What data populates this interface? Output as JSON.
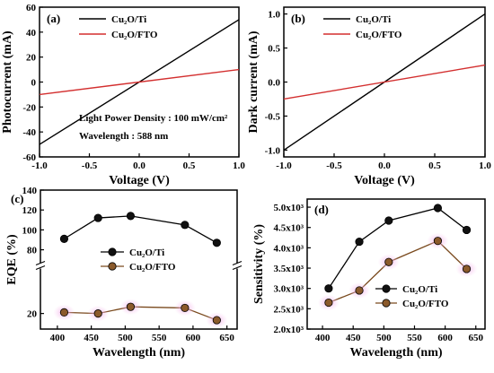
{
  "chart_data": [
    {
      "panel": "(a)",
      "type": "line",
      "xlabel": "Voltage (V)",
      "ylabel": "Photocurrent (mA)",
      "xlim": [
        -1.0,
        1.0
      ],
      "ylim": [
        -60,
        60
      ],
      "xticks": [
        "-1.0",
        "-0.5",
        "0.0",
        "0.5",
        "1.0"
      ],
      "xtick_values": [
        -1.0,
        -0.5,
        0.0,
        0.5,
        1.0
      ],
      "yticks": [
        "-60",
        "-40",
        "-20",
        "0",
        "20",
        "40",
        "60"
      ],
      "ytick_values": [
        -60,
        -40,
        -20,
        0,
        20,
        40,
        60
      ],
      "legend_position": "top-left",
      "annotations": [
        "Light Power Density : 100 mW/cm²",
        "Wavelength : 588 nm"
      ],
      "series": [
        {
          "name": "Cu₂O/Ti",
          "color": "#000000",
          "x": [
            -1.0,
            1.0
          ],
          "y": [
            -50,
            50
          ]
        },
        {
          "name": "Cu₂O/FTO",
          "color": "#d32f2f",
          "x": [
            -1.0,
            1.0
          ],
          "y": [
            -10,
            10
          ]
        }
      ]
    },
    {
      "panel": "(b)",
      "type": "line",
      "xlabel": "Voltage (V)",
      "ylabel": "Dark current (mA)",
      "xlim": [
        -1.0,
        1.0
      ],
      "ylim": [
        -1.1,
        1.1
      ],
      "xticks": [
        "-1.0",
        "-0.5",
        "0.0",
        "0.5",
        "1.0"
      ],
      "xtick_values": [
        -1.0,
        -0.5,
        0.0,
        0.5,
        1.0
      ],
      "yticks": [
        "-1.0",
        "-0.5",
        "0.0",
        "0.5",
        "1.0"
      ],
      "ytick_values": [
        -1.0,
        -0.5,
        0.0,
        0.5,
        1.0
      ],
      "legend_position": "top-left",
      "series": [
        {
          "name": "Cu₂O/Ti",
          "color": "#000000",
          "x": [
            -1.0,
            1.0
          ],
          "y": [
            -1.0,
            1.0
          ]
        },
        {
          "name": "Cu₂O/FTO",
          "color": "#d32f2f",
          "x": [
            -1.0,
            1.0
          ],
          "y": [
            -0.25,
            0.25
          ]
        }
      ]
    },
    {
      "panel": "(c)",
      "type": "line",
      "xlabel": "Wavelength (nm)",
      "ylabel": "EQE (%)",
      "xlim": [
        375,
        665
      ],
      "xticks": [
        "400",
        "450",
        "500",
        "550",
        "600",
        "650"
      ],
      "xtick_values": [
        400,
        450,
        500,
        550,
        600,
        650
      ],
      "axis_break": true,
      "upper_segment": {
        "ylim": [
          67,
          140
        ],
        "yticks": [
          "80",
          "100",
          "120",
          "140"
        ],
        "ytick_values": [
          80,
          100,
          120,
          140
        ]
      },
      "lower_segment": {
        "ylim": [
          13,
          40
        ],
        "yticks": [
          "20"
        ],
        "ytick_values": [
          20
        ]
      },
      "legend_position": "center",
      "series": [
        {
          "name": "Cu₂O/Ti",
          "color": "#000000",
          "marker_color": "#111111",
          "segment": "upper",
          "x": [
            410,
            460,
            508,
            588,
            635
          ],
          "y": [
            91,
            112,
            114,
            105,
            87
          ]
        },
        {
          "name": "Cu₂O/FTO",
          "color": "#7a4a1e",
          "marker_color": "#8b5a2b",
          "segment": "lower",
          "x": [
            410,
            460,
            508,
            588,
            635
          ],
          "y": [
            20.5,
            20,
            23,
            22.5,
            17
          ]
        }
      ]
    },
    {
      "panel": "(d)",
      "type": "line",
      "xlabel": "Wavelength (nm)",
      "ylabel": "Sensitivity (%)",
      "xlim": [
        375,
        665
      ],
      "ylim": [
        2000,
        5200
      ],
      "xticks": [
        "400",
        "450",
        "500",
        "550",
        "600",
        "650"
      ],
      "xtick_values": [
        400,
        450,
        500,
        550,
        600,
        650
      ],
      "yticks": [
        "2.0x10³",
        "2.5x10³",
        "3.0x10³",
        "3.5x10³",
        "4.0x10³",
        "4.5x10³",
        "5.0x10³"
      ],
      "ytick_values": [
        2000,
        2500,
        3000,
        3500,
        4000,
        4500,
        5000
      ],
      "legend_position": "bottom-right",
      "series": [
        {
          "name": "Cu₂O/Ti",
          "color": "#000000",
          "marker_color": "#111111",
          "x": [
            410,
            460,
            508,
            588,
            635
          ],
          "y": [
            3000,
            4150,
            4670,
            4980,
            4440
          ]
        },
        {
          "name": "Cu₂O/FTO",
          "color": "#7a4a1e",
          "marker_color": "#8b5a2b",
          "x": [
            410,
            460,
            508,
            588,
            635
          ],
          "y": [
            2650,
            2950,
            3650,
            4170,
            3480
          ]
        }
      ]
    }
  ]
}
